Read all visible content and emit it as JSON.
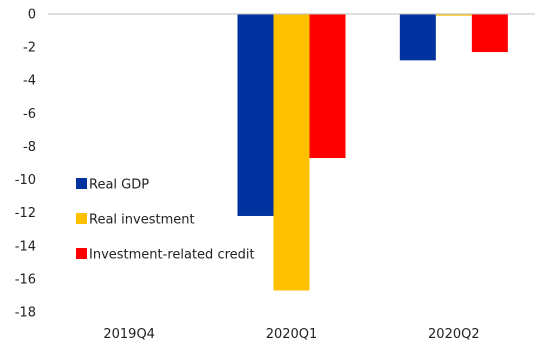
{
  "chart_data": {
    "type": "bar",
    "categories": [
      "2019Q4",
      "2020Q1",
      "2020Q2"
    ],
    "series": [
      {
        "name": "Real GDP",
        "color": "#0033a0",
        "values": [
          0,
          -12.2,
          -2.8
        ]
      },
      {
        "name": "Real investment",
        "color": "#ffc000",
        "values": [
          0,
          -16.7,
          -0.1
        ]
      },
      {
        "name": "Investment-related credit",
        "color": "#ff0000",
        "values": [
          0,
          -8.7,
          -2.3
        ]
      }
    ],
    "ylim": [
      -18,
      0
    ],
    "yticks": [
      0,
      -2,
      -4,
      -6,
      -8,
      -10,
      -12,
      -14,
      -16,
      -18
    ],
    "title": "",
    "xlabel": "",
    "ylabel": "",
    "grid": false,
    "legend_placement": "lower-left"
  }
}
